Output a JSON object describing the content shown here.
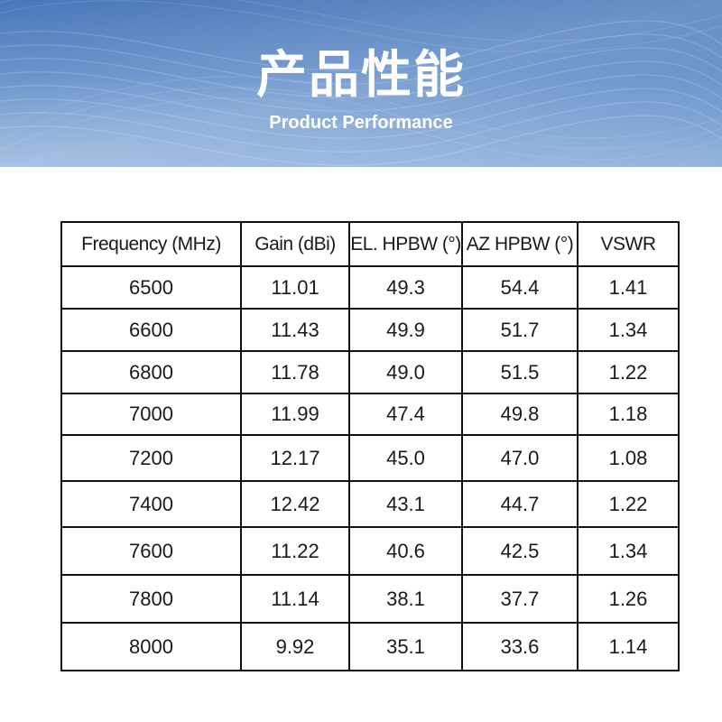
{
  "banner": {
    "title": "产品性能",
    "subtitle": "Product Performance"
  },
  "table": {
    "headers": [
      "Frequency (MHz)",
      "Gain (dBi)",
      "EL. HPBW (°)",
      "AZ HPBW (°)",
      "VSWR"
    ],
    "rows": [
      [
        "6500",
        "11.01",
        "49.3",
        "54.4",
        "1.41"
      ],
      [
        "6600",
        "11.43",
        "49.9",
        "51.7",
        "1.34"
      ],
      [
        "6800",
        "11.78",
        "49.0",
        "51.5",
        "1.22"
      ],
      [
        "7000",
        "11.99",
        "47.4",
        "49.8",
        "1.18"
      ],
      [
        "7200",
        "12.17",
        "45.0",
        "47.0",
        "1.08"
      ],
      [
        "7400",
        "12.42",
        "43.1",
        "44.7",
        "1.22"
      ],
      [
        "7600",
        "11.22",
        "40.6",
        "42.5",
        "1.34"
      ],
      [
        "7800",
        "11.14",
        "38.1",
        "37.7",
        "1.26"
      ],
      [
        "8000",
        "9.92",
        "35.1",
        "33.6",
        "1.14"
      ]
    ]
  }
}
